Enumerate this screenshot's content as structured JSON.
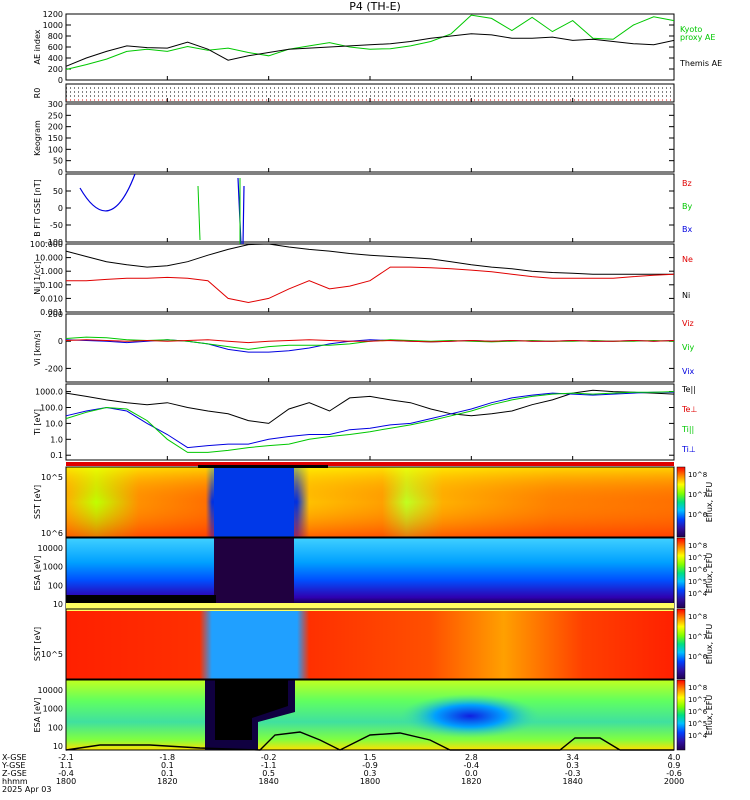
{
  "title": "P4  (TH-E)",
  "footer": {
    "rows": [
      "X-GSE",
      "Y-GSE",
      "Z-GSE",
      "hhmm",
      "2025 Apr 03"
    ],
    "ticks": [
      {
        "x": "-2.1",
        "y": "1.1",
        "z": "-0.4",
        "t": "1800"
      },
      {
        "x": "-1.8",
        "y": "0.1",
        "z": "0.1",
        "t": "1820"
      },
      {
        "x": "-0.2",
        "y": "-1.1",
        "z": "0.5",
        "t": "1840"
      },
      {
        "x": "1.5",
        "y": "-0.9",
        "z": "0.3",
        "t": "1800"
      },
      {
        "x": "2.8",
        "y": "-0.4",
        "z": "0.0",
        "t": "1820"
      },
      {
        "x": "3.4",
        "y": "0.3",
        "z": "-0.3",
        "t": "1840"
      },
      {
        "x": "4.0",
        "y": "0.9",
        "z": "-0.6",
        "t": "2000"
      }
    ]
  },
  "colors": {
    "ae_kyoto": "#00c800",
    "ae_themis": "#000000",
    "red": "#e00000",
    "green": "#00c800",
    "blue": "#0000e0",
    "black": "#000000"
  },
  "colorbar": {
    "ticks_flux": [
      "10^8",
      "10^7",
      "10^6"
    ],
    "ticks_esa": [
      "10^8",
      "10^7",
      "10^6",
      "10^5",
      "10^4"
    ],
    "label": "Eflux, EFU"
  },
  "chart_data": [
    {
      "type": "line",
      "panel": "AE index",
      "ylabel": "AE index",
      "ylim": [
        0,
        1200
      ],
      "yticks": [
        "0",
        "200",
        "400",
        "600",
        "800",
        "1000",
        "1200"
      ],
      "series": [
        {
          "name": "Kyoto proxy AE",
          "color": "#00c800",
          "values": [
            190,
            280,
            380,
            520,
            560,
            520,
            610,
            540,
            580,
            500,
            440,
            560,
            620,
            680,
            600,
            560,
            570,
            620,
            700,
            840,
            1180,
            1120,
            900,
            1140,
            880,
            1080,
            760,
            740,
            1000,
            1150,
            1080
          ]
        },
        {
          "name": "Themis AE",
          "color": "#000000",
          "values": [
            250,
            400,
            520,
            620,
            590,
            580,
            690,
            560,
            360,
            440,
            500,
            560,
            580,
            600,
            620,
            640,
            660,
            700,
            760,
            800,
            840,
            820,
            760,
            760,
            780,
            720,
            740,
            700,
            660,
            640,
            720
          ]
        }
      ]
    },
    {
      "type": "line",
      "panel": "R0",
      "ylabel": "R0",
      "ylim": [
        0,
        1
      ]
    },
    {
      "type": "heatmap",
      "panel": "Keogram",
      "ylabel": "Keogram",
      "ylim": [
        0,
        300
      ],
      "yticks": [
        "0",
        "50",
        "100",
        "150",
        "200",
        "250",
        "300"
      ]
    },
    {
      "type": "line",
      "panel": "B FIT GSE",
      "ylabel": "B FIT GSE [nT]",
      "ylim": [
        -100,
        100
      ],
      "yticks": [
        "-100",
        "-50",
        "0",
        "50"
      ],
      "series": [
        {
          "name": "Bz",
          "color": "#e00000"
        },
        {
          "name": "By",
          "color": "#00c800"
        },
        {
          "name": "Bx",
          "color": "#0000e0"
        }
      ]
    },
    {
      "type": "line",
      "panel": "Ni",
      "ylabel": "Ni [1/cc]",
      "scale": "log",
      "ylim": [
        0.001,
        100
      ],
      "yticks": [
        "0.001",
        "0.010",
        "0.100",
        "1.000",
        "10.000",
        "100.000"
      ],
      "series": [
        {
          "name": "Ne",
          "color": "#e00000"
        },
        {
          "name": "Ni",
          "color": "#000000"
        }
      ]
    },
    {
      "type": "line",
      "panel": "Vi",
      "ylabel": "Vi [km/s]",
      "ylim": [
        -300,
        200
      ],
      "yticks": [
        "-200",
        "0",
        "200"
      ],
      "series": [
        {
          "name": "Viz",
          "color": "#e00000"
        },
        {
          "name": "Viy",
          "color": "#00c800"
        },
        {
          "name": "Vix",
          "color": "#0000e0"
        }
      ]
    },
    {
      "type": "line",
      "panel": "Ti",
      "ylabel": "Ti [eV]",
      "scale": "log",
      "ylim": [
        0.05,
        3000
      ],
      "yticks": [
        "0.1",
        "1.0",
        "10.0",
        "100.0",
        "1000.0"
      ],
      "series": [
        {
          "name": "Te||",
          "color": "#000000"
        },
        {
          "name": "Te⊥",
          "color": "#e00000"
        },
        {
          "name": "Ti||",
          "color": "#00c800"
        },
        {
          "name": "Ti⊥",
          "color": "#0000e0"
        }
      ]
    },
    {
      "type": "heatmap",
      "panel": "SST omni top",
      "ylabel": "SST [eV]",
      "yticks": [
        "10^6",
        "10^5"
      ]
    },
    {
      "type": "heatmap",
      "panel": "ESA ion",
      "ylabel": "ESA [eV]",
      "yticks": [
        "10",
        "100",
        "1000",
        "10000"
      ]
    },
    {
      "type": "heatmap",
      "panel": "SST omni bottom",
      "ylabel": "SST [eV]",
      "yticks": [
        "10^5"
      ]
    },
    {
      "type": "heatmap",
      "panel": "ESA electron",
      "ylabel": "ESA [eV]",
      "yticks": [
        "10",
        "100",
        "1000",
        "10000"
      ]
    }
  ]
}
